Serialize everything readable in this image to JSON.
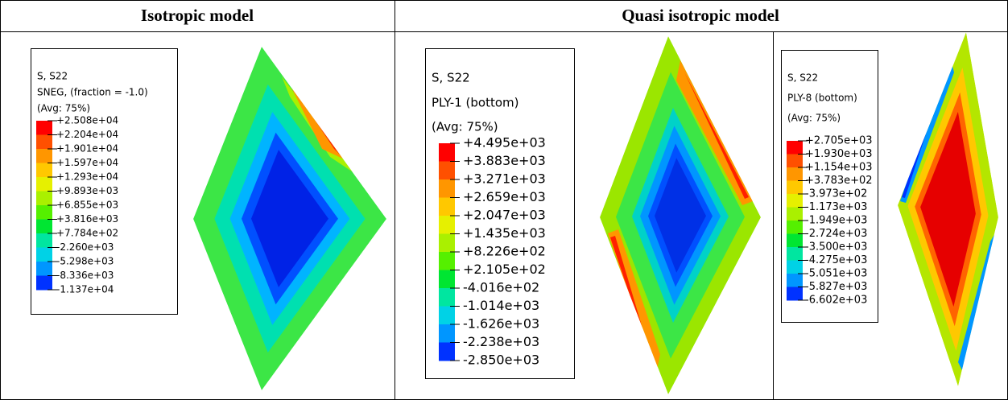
{
  "table": {
    "headers": [
      "Isotropic model",
      "Quasi isotropic model"
    ],
    "panels": [
      {
        "legend": {
          "lines": [
            "S, S22",
            "SNEG, (fraction = -1.0)",
            "(Avg: 75%)"
          ],
          "values": [
            "+2.508e+04",
            "+2.204e+04",
            "+1.901e+04",
            "+1.597e+04",
            "+1.293e+04",
            "+9.893e+03",
            "+6.855e+03",
            "+3.816e+03",
            "+7.784e+02",
            "-2.260e+03",
            "-5.298e+03",
            "-8.336e+03",
            "-1.137e+04"
          ]
        }
      },
      {
        "legend": {
          "lines": [
            "S, S22",
            "PLY-1 (bottom)",
            "(Avg: 75%)"
          ],
          "values": [
            "+4.495e+03",
            "+3.883e+03",
            "+3.271e+03",
            "+2.659e+03",
            "+2.047e+03",
            "+1.435e+03",
            "+8.226e+02",
            "+2.105e+02",
            "-4.016e+02",
            "-1.014e+03",
            "-1.626e+03",
            "-2.238e+03",
            "-2.850e+03"
          ]
        }
      },
      {
        "legend": {
          "lines": [
            "S, S22",
            "PLY-8 (bottom)",
            "(Avg: 75%)"
          ],
          "values": [
            "+2.705e+03",
            "+1.930e+03",
            "+1.154e+03",
            "+3.783e+02",
            "-3.973e+02",
            "-1.173e+03",
            "-1.949e+03",
            "-2.724e+03",
            "-3.500e+03",
            "-4.275e+03",
            "-5.051e+03",
            "-5.827e+03",
            "-6.602e+03"
          ]
        }
      }
    ]
  }
}
